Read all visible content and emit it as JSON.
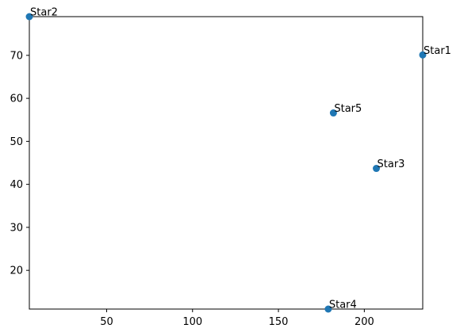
{
  "chart_data": {
    "type": "scatter",
    "title": "",
    "xlabel": "",
    "ylabel": "",
    "xlim": [
      5,
      234
    ],
    "ylim": [
      11,
      79
    ],
    "x_ticks": [
      50,
      100,
      150,
      200
    ],
    "y_ticks": [
      20,
      30,
      40,
      50,
      60,
      70
    ],
    "grid": false,
    "points": [
      {
        "label": "Star1",
        "x": 234,
        "y": 70.1
      },
      {
        "label": "Star2",
        "x": 5,
        "y": 79
      },
      {
        "label": "Star3",
        "x": 207,
        "y": 43.7
      },
      {
        "label": "Star4",
        "x": 179,
        "y": 11
      },
      {
        "label": "Star5",
        "x": 182,
        "y": 56.6
      }
    ],
    "marker_color": "#1f77b4"
  }
}
